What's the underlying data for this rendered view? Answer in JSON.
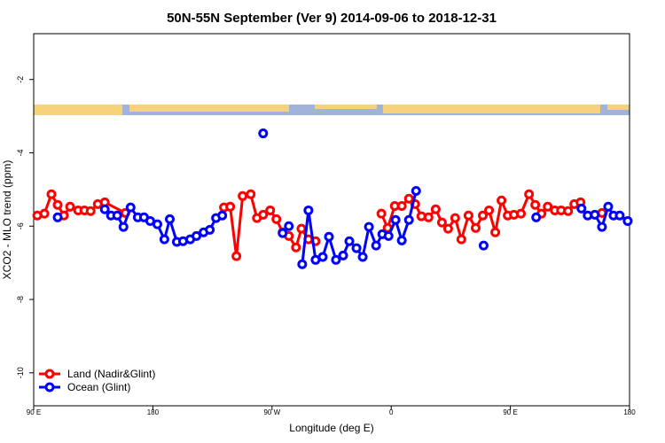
{
  "chart_data": {
    "type": "line",
    "title": "50N-55N September (Ver 9)   2014-09-06 to 2018-12-31",
    "x_label": "Longitude (deg E)",
    "y_label": "XCO2 - MLO trend (ppm)",
    "xlim": [
      90,
      540
    ],
    "ylim": [
      -10.9,
      -0.75
    ],
    "xticks": [
      {
        "value": 90,
        "label": "90 E"
      },
      180,
      {
        "value": 270,
        "label": "90 W"
      },
      {
        "value": 360,
        "label": "0"
      },
      {
        "value": 450,
        "label": "90 E"
      },
      {
        "value": 540,
        "label": "180"
      }
    ],
    "yticks": [
      -10,
      -8,
      -6,
      -4,
      -2
    ],
    "legend": "bottom-left",
    "series": [
      {
        "name": "Land (Nadir&Glint)",
        "color": "#ff0000",
        "x": [
          92.7,
          98.1,
          103.4,
          108.1,
          112.8,
          117.5,
          123.6,
          128.3,
          133,
          138.4,
          143.7,
          159.2,
          null,
          233.7,
          238.4,
          243.1,
          247.8,
          253.9,
          258.6,
          263.3,
          268.6,
          273.3,
          278,
          282.7,
          288.1,
          292.2,
          297.5,
          302.9,
          null,
          352.6,
          357.3,
          362.7,
          368,
          373.4,
          378.1,
          382.8,
          388.2,
          393.6,
          398.3,
          403,
          408.3,
          413,
          418.4,
          423.8,
          429.2,
          433.9,
          438.6,
          443.3,
          448,
          452.7,
          458,
          464.1,
          468.8,
          473.5,
          478.2,
          483.6,
          488.3,
          493.6,
          498.3,
          503,
          null,
          519.2
        ],
        "values": [
          -5.71,
          -5.66,
          -5.13,
          -5.42,
          -5.71,
          -5.47,
          -5.57,
          -5.57,
          -5.59,
          -5.4,
          -5.35,
          -5.64,
          null,
          -5.49,
          -5.47,
          -6.82,
          -5.18,
          -5.13,
          -5.78,
          -5.69,
          -5.57,
          -5.81,
          -6.17,
          -6.27,
          -6.58,
          -6.07,
          -6.36,
          -6.41,
          null,
          -5.66,
          -6.05,
          -5.45,
          -5.45,
          -5.25,
          -5.4,
          -5.73,
          -5.76,
          -5.54,
          -5.9,
          -6.07,
          -5.78,
          -6.36,
          -5.71,
          -6.05,
          -5.71,
          -5.57,
          -6.17,
          -5.3,
          -5.71,
          -5.69,
          -5.66,
          -5.13,
          -5.42,
          -5.66,
          -5.47,
          -5.57,
          -5.57,
          -5.59,
          -5.4,
          -5.35,
          null,
          -5.64
        ]
      },
      {
        "name": "Ocean (Glint)",
        "color": "#0000ff",
        "x": [
          108.1,
          null,
          143.7,
          148.4,
          153.1,
          157.8,
          163.2,
          168.6,
          173.3,
          178,
          183.4,
          188.7,
          192.8,
          198.1,
          202.8,
          208.2,
          212.9,
          218.3,
          223,
          227.7,
          232.4,
          null,
          263.3,
          null,
          278,
          282.7,
          null,
          292.8,
          297.5,
          302.9,
          308.3,
          313,
          318.3,
          323.7,
          328.4,
          333.8,
          338.5,
          343.2,
          348.6,
          353.3,
          358,
          363.3,
          368,
          373.4,
          378.8,
          null,
          429.8,
          null,
          469.5,
          null,
          503.7,
          508.4,
          513.8,
          519.2,
          523.9,
          527.9,
          532.6,
          538.6
        ],
        "values": [
          -5.76,
          null,
          -5.54,
          -5.71,
          -5.71,
          -6.02,
          -5.49,
          -5.76,
          -5.76,
          -5.86,
          -5.95,
          -6.36,
          -5.81,
          -6.43,
          -6.41,
          -6.36,
          -6.27,
          -6.17,
          -6.1,
          -5.78,
          -5.71,
          null,
          -3.47,
          null,
          -6.19,
          -6.0,
          null,
          -7.04,
          -5.57,
          -6.92,
          -6.84,
          -6.29,
          -6.92,
          -6.8,
          -6.41,
          -6.6,
          -6.84,
          -6.02,
          -6.53,
          -6.22,
          -6.27,
          -5.83,
          -6.39,
          -5.83,
          -5.04,
          null,
          -6.53,
          null,
          -5.76,
          null,
          -5.52,
          -5.71,
          -5.69,
          -6.02,
          -5.47,
          -5.71,
          -5.71,
          -5.86
        ]
      }
    ]
  }
}
